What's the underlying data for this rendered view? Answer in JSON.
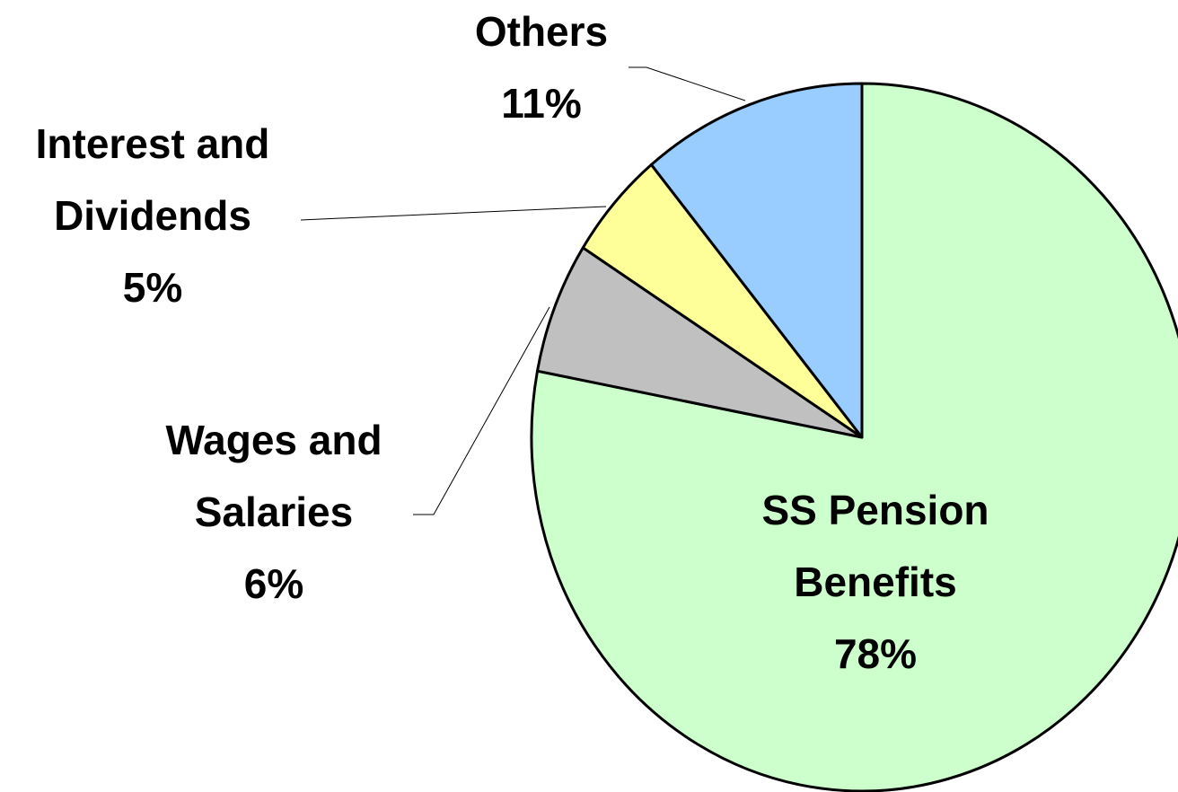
{
  "chart_data": {
    "type": "pie",
    "categories": [
      "SS Pension Benefits",
      "Wages and Salaries",
      "Interest and Dividends",
      "Others"
    ],
    "values": [
      78,
      6,
      5,
      11
    ],
    "value_labels": [
      "78%",
      "6%",
      "5%",
      "11%"
    ],
    "colors": [
      "#ccffcc",
      "#c0c0c0",
      "#ffff99",
      "#99ccff"
    ]
  }
}
